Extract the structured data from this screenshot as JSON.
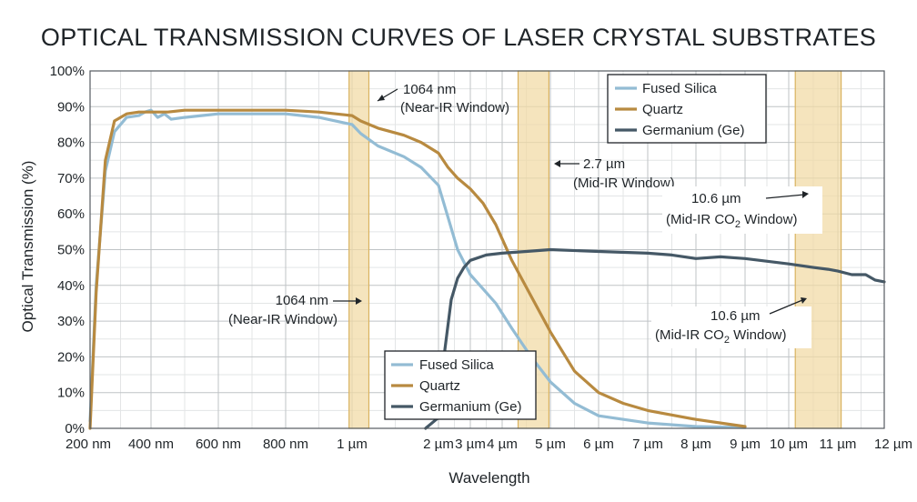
{
  "chart_data": {
    "type": "line",
    "title": "OPTICAL TRANSMISSION CURVES OF LASER CRYSTAL SUBSTRATES",
    "xlabel": "Wavelength",
    "ylabel": "Optical Transmission (%)",
    "ylim": [
      0,
      100
    ],
    "y_ticks": [
      "0%",
      "10%",
      "20%",
      "30%",
      "40%",
      "50%",
      "60%",
      "70%",
      "80%",
      "90%",
      "100%"
    ],
    "x_ticks": [
      {
        "label": "200 nm",
        "um": 0.2
      },
      {
        "label": "400 nm",
        "um": 0.4
      },
      {
        "label": "600 nm",
        "um": 0.6
      },
      {
        "label": "800 nm",
        "um": 0.8
      },
      {
        "label": "1 µm",
        "um": 1.0
      },
      {
        "label": "2 µm",
        "um": 2.0
      },
      {
        "label": "3 µm",
        "um": 3.0
      },
      {
        "label": "4 µm",
        "um": 4.0
      },
      {
        "label": "5 µm",
        "um": 5.0
      },
      {
        "label": "6 µm",
        "um": 6.0
      },
      {
        "label": "7 µm",
        "um": 7.0
      },
      {
        "label": "8 µm",
        "um": 8.0
      },
      {
        "label": "9 µm",
        "um": 9.0
      },
      {
        "label": "10 µm",
        "um": 10.0
      },
      {
        "label": "11 µm",
        "um": 11.0
      },
      {
        "label": "12 µm",
        "um": 12.0
      }
    ],
    "grid": true,
    "series": [
      {
        "name": "Fused Silica",
        "color": "#93bcd4",
        "points": [
          [
            0.2,
            2
          ],
          [
            0.22,
            40
          ],
          [
            0.25,
            72
          ],
          [
            0.28,
            83
          ],
          [
            0.32,
            87
          ],
          [
            0.36,
            87.5
          ],
          [
            0.38,
            88.5
          ],
          [
            0.4,
            89
          ],
          [
            0.42,
            87
          ],
          [
            0.44,
            88
          ],
          [
            0.46,
            86.5
          ],
          [
            0.5,
            87
          ],
          [
            0.55,
            87.5
          ],
          [
            0.6,
            88
          ],
          [
            0.7,
            88
          ],
          [
            0.8,
            88
          ],
          [
            0.9,
            87
          ],
          [
            1.0,
            85
          ],
          [
            1.1,
            82.5
          ],
          [
            1.3,
            79
          ],
          [
            1.6,
            76
          ],
          [
            1.8,
            73
          ],
          [
            2.0,
            68
          ],
          [
            2.3,
            59
          ],
          [
            2.6,
            50
          ],
          [
            3.0,
            43
          ],
          [
            3.4,
            39
          ],
          [
            3.8,
            35
          ],
          [
            4.2,
            28
          ],
          [
            4.6,
            20
          ],
          [
            5.0,
            13
          ],
          [
            5.5,
            7
          ],
          [
            6.0,
            3.5
          ],
          [
            7.0,
            1.5
          ],
          [
            8.0,
            0.5
          ],
          [
            9.0,
            0.2
          ]
        ]
      },
      {
        "name": "Quartz",
        "color": "#b88a40",
        "points": [
          [
            0.2,
            0
          ],
          [
            0.22,
            38
          ],
          [
            0.25,
            75
          ],
          [
            0.28,
            86
          ],
          [
            0.32,
            88
          ],
          [
            0.36,
            88.5
          ],
          [
            0.4,
            88.5
          ],
          [
            0.45,
            88.5
          ],
          [
            0.5,
            89
          ],
          [
            0.6,
            89
          ],
          [
            0.7,
            89
          ],
          [
            0.8,
            89
          ],
          [
            0.9,
            88.5
          ],
          [
            1.0,
            87.5
          ],
          [
            1.1,
            86
          ],
          [
            1.3,
            84
          ],
          [
            1.6,
            82
          ],
          [
            1.8,
            80
          ],
          [
            2.0,
            77
          ],
          [
            2.3,
            73
          ],
          [
            2.6,
            70
          ],
          [
            3.0,
            67
          ],
          [
            3.4,
            63
          ],
          [
            3.8,
            57
          ],
          [
            4.2,
            47
          ],
          [
            4.6,
            37
          ],
          [
            5.0,
            27
          ],
          [
            5.5,
            16
          ],
          [
            6.0,
            10
          ],
          [
            6.5,
            7
          ],
          [
            7.0,
            5
          ],
          [
            8.0,
            2.5
          ],
          [
            9.0,
            0.5
          ]
        ]
      },
      {
        "name": "Germanium (Ge)",
        "color": "#455866",
        "points": [
          [
            1.85,
            0
          ],
          [
            2.0,
            3
          ],
          [
            2.2,
            22
          ],
          [
            2.4,
            36
          ],
          [
            2.6,
            42
          ],
          [
            2.8,
            45
          ],
          [
            3.0,
            47
          ],
          [
            3.5,
            48.5
          ],
          [
            4.0,
            49
          ],
          [
            4.5,
            49.5
          ],
          [
            5.0,
            50
          ],
          [
            6.0,
            49.5
          ],
          [
            7.0,
            49
          ],
          [
            7.5,
            48.5
          ],
          [
            8.0,
            47.5
          ],
          [
            8.5,
            48
          ],
          [
            9.0,
            47.5
          ],
          [
            10.0,
            46
          ],
          [
            10.5,
            45
          ],
          [
            10.8,
            44.5
          ],
          [
            11.0,
            44
          ],
          [
            11.3,
            43
          ],
          [
            11.6,
            43
          ],
          [
            11.8,
            41.5
          ],
          [
            12.0,
            41
          ]
        ]
      }
    ],
    "bands": [
      {
        "from_um": 1.06,
        "to_um": 1.1
      },
      {
        "from_um": 4.5,
        "to_um": 4.8
      },
      {
        "from_um": 10.3,
        "to_um": 10.9
      }
    ],
    "annotations": [
      {
        "line1": "1064 nm",
        "line2": "(Near-IR Window)"
      },
      {
        "line1": "1064 nm",
        "line2": "(Near-IR Window)"
      },
      {
        "line1": "2.7 µm",
        "line2": "(Mid-IR Window)"
      },
      {
        "line1": "10.6 µm",
        "line2_pre": "(Mid-IR CO",
        "line2_sub": "2",
        "line2_post": " Window)"
      },
      {
        "line1": "10.6 µm",
        "line2_pre": "(Mid-IR CO",
        "line2_sub": "2",
        "line2_post": " Window)"
      }
    ],
    "legend_entries": [
      "Fused Silica",
      "Quartz",
      "Germanium (Ge)"
    ],
    "legend_placement": [
      "top-right",
      "bottom-center"
    ]
  }
}
